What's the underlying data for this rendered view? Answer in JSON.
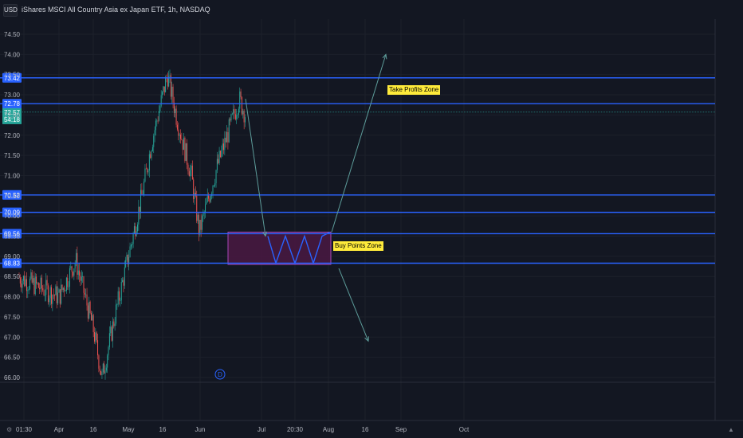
{
  "header": {
    "currency_button": "USD",
    "title": "iShares MSCI All Country Asia ex Japan ETF, 1h, NASDAQ"
  },
  "colors": {
    "background": "#131722",
    "up": "#26a69a",
    "down": "#ef5350",
    "level_line": "#2962ff",
    "box_fill": "#4a1942",
    "box_border": "#ab47bc",
    "arrow": "#5d9c9a",
    "note_bg": "#ffeb3b"
  },
  "annotations": {
    "take_profit": "Take Profits Zone",
    "buy_points": "Buy Points Zone",
    "event_marker": "D"
  },
  "chart_data": {
    "type": "candlestick",
    "title": "iShares MSCI All Country Asia ex Japan ETF, 1h, NASDAQ",
    "ylim": [
      65.9,
      74.85
    ],
    "y_ticks": [
      "74.50",
      "74.00",
      "73.50",
      "73.00",
      "72.50",
      "72.00",
      "71.50",
      "71.00",
      "70.50",
      "70.00",
      "69.50",
      "69.00",
      "68.50",
      "68.00",
      "67.50",
      "67.00",
      "66.50",
      "66.00"
    ],
    "x_ticks": [
      "01:30",
      "Apr",
      "16",
      "May",
      "16",
      "Jun",
      "Jul",
      "20:30",
      "Aug",
      "16",
      "Sep",
      "Oct"
    ],
    "levels": [
      73.42,
      72.78,
      70.52,
      70.09,
      69.56,
      68.83
    ],
    "level_labels": [
      "73.42",
      "72.78",
      "70.52",
      "70.09",
      "69.56",
      "68.83"
    ],
    "last_price": "72.57",
    "countdown": "54:18",
    "buy_zone": {
      "from": "Jul",
      "to": "Aug",
      "top": 69.6,
      "bottom": 68.8
    },
    "price_path": [
      {
        "t": "Mar late",
        "v": 68.5
      },
      {
        "t": "Apr",
        "v": 68.0
      },
      {
        "t": "Apr 10",
        "v": 68.9
      },
      {
        "t": "Apr 16",
        "v": 67.2
      },
      {
        "t": "Apr 22",
        "v": 66.0
      },
      {
        "t": "Apr 28",
        "v": 67.6
      },
      {
        "t": "May",
        "v": 69.0
      },
      {
        "t": "May 8",
        "v": 70.5
      },
      {
        "t": "May 12",
        "v": 71.8
      },
      {
        "t": "May 16",
        "v": 73.5
      },
      {
        "t": "May 22",
        "v": 72.4
      },
      {
        "t": "May 30",
        "v": 71.0
      },
      {
        "t": "Jun",
        "v": 69.6
      },
      {
        "t": "Jun 6",
        "v": 71.2
      },
      {
        "t": "Jun 12",
        "v": 72.9
      },
      {
        "t": "Jun 16",
        "v": 72.5
      }
    ]
  }
}
